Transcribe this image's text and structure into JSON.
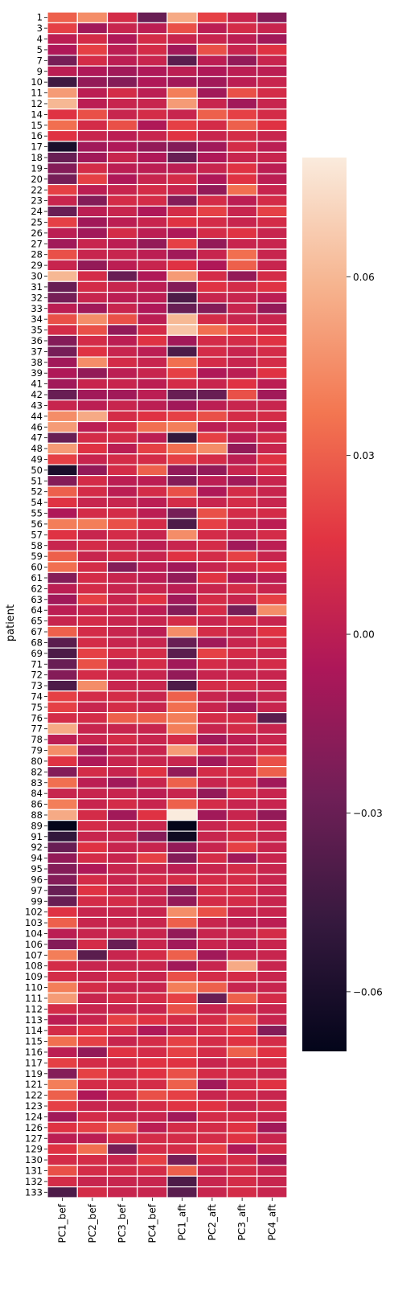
{
  "chart_data": {
    "type": "heatmap",
    "title": "",
    "xlabel": "",
    "ylabel": "patient",
    "columns": [
      "PC1_bef",
      "PC2_bef",
      "PC3_bef",
      "PC4_bef",
      "PC1_aft",
      "PC2_aft",
      "PC3_aft",
      "PC4_aft"
    ],
    "rows": [
      "1",
      "3",
      "4",
      "5",
      "7",
      "9",
      "10",
      "11",
      "12",
      "14",
      "15",
      "16",
      "17",
      "18",
      "19",
      "20",
      "22",
      "23",
      "24",
      "25",
      "26",
      "27",
      "28",
      "29",
      "30",
      "31",
      "32",
      "33",
      "34",
      "35",
      "36",
      "37",
      "38",
      "39",
      "41",
      "42",
      "43",
      "44",
      "46",
      "47",
      "48",
      "49",
      "50",
      "51",
      "52",
      "54",
      "55",
      "56",
      "57",
      "58",
      "59",
      "60",
      "61",
      "62",
      "63",
      "64",
      "65",
      "67",
      "68",
      "69",
      "71",
      "72",
      "73",
      "74",
      "75",
      "76",
      "77",
      "78",
      "79",
      "80",
      "82",
      "83",
      "84",
      "86",
      "88",
      "89",
      "91",
      "92",
      "94",
      "95",
      "96",
      "97",
      "99",
      "102",
      "103",
      "104",
      "106",
      "107",
      "108",
      "109",
      "110",
      "111",
      "112",
      "113",
      "114",
      "115",
      "116",
      "117",
      "119",
      "121",
      "122",
      "123",
      "124",
      "126",
      "127",
      "129",
      "130",
      "131",
      "132",
      "133"
    ],
    "values": [
      [
        0.03,
        0.045,
        0.01,
        -0.03,
        0.055,
        0.02,
        0.005,
        -0.02
      ],
      [
        0.02,
        -0.01,
        0.005,
        0.0,
        0.025,
        0.0,
        0.01,
        0.005
      ],
      [
        0.0,
        0.01,
        -0.005,
        0.01,
        0.005,
        0.005,
        0.0,
        -0.01
      ],
      [
        -0.005,
        0.02,
        0.0,
        0.01,
        -0.01,
        0.025,
        0.005,
        0.015
      ],
      [
        -0.025,
        0.01,
        0.0,
        0.005,
        -0.035,
        0.0,
        -0.015,
        0.005
      ],
      [
        0.0,
        -0.005,
        -0.01,
        -0.005,
        0.0,
        -0.005,
        0.0,
        0.0
      ],
      [
        -0.045,
        -0.015,
        -0.02,
        -0.005,
        -0.01,
        -0.01,
        0.0,
        0.005
      ],
      [
        0.05,
        0.0,
        0.01,
        0.0,
        0.04,
        -0.01,
        0.025,
        0.01
      ],
      [
        0.06,
        0.0,
        0.005,
        0.005,
        0.05,
        0.005,
        -0.01,
        0.005
      ],
      [
        0.015,
        0.025,
        0.005,
        0.01,
        0.005,
        0.03,
        0.02,
        0.01
      ],
      [
        0.035,
        0.01,
        0.025,
        -0.005,
        0.02,
        0.01,
        0.03,
        0.015
      ],
      [
        0.015,
        0.005,
        0.0,
        0.005,
        0.015,
        0.005,
        0.01,
        0.005
      ],
      [
        -0.06,
        -0.01,
        -0.005,
        -0.015,
        -0.02,
        -0.01,
        0.01,
        0.0
      ],
      [
        -0.03,
        -0.01,
        0.005,
        -0.005,
        -0.03,
        -0.005,
        0.005,
        0.005
      ],
      [
        -0.02,
        0.01,
        0.0,
        0.0,
        0.0,
        0.005,
        0.015,
        0.0
      ],
      [
        -0.025,
        0.02,
        -0.005,
        0.005,
        0.01,
        -0.005,
        0.015,
        0.0
      ],
      [
        0.02,
        0.0,
        0.005,
        0.01,
        0.005,
        -0.015,
        0.035,
        0.005
      ],
      [
        0.005,
        -0.02,
        0.01,
        0.01,
        -0.02,
        0.01,
        0.0,
        0.01
      ],
      [
        -0.03,
        0.0,
        0.005,
        -0.005,
        0.01,
        0.02,
        0.005,
        0.02
      ],
      [
        0.02,
        -0.01,
        0.0,
        0.005,
        0.015,
        0.01,
        0.005,
        0.01
      ],
      [
        0.0,
        -0.01,
        0.01,
        0.0,
        -0.005,
        0.01,
        0.015,
        0.005
      ],
      [
        -0.01,
        0.005,
        0.0,
        -0.015,
        0.02,
        -0.015,
        0.005,
        0.005
      ],
      [
        0.025,
        0.005,
        0.005,
        0.0,
        -0.01,
        0.005,
        0.035,
        0.005
      ],
      [
        0.005,
        -0.015,
        0.0,
        0.005,
        0.015,
        -0.005,
        0.03,
        0.005
      ],
      [
        0.06,
        0.01,
        -0.03,
        -0.005,
        0.05,
        0.01,
        -0.015,
        0.01
      ],
      [
        -0.03,
        0.01,
        0.005,
        0.0,
        -0.02,
        0.015,
        0.01,
        0.015
      ],
      [
        -0.025,
        0.005,
        0.0,
        0.0,
        -0.04,
        0.005,
        0.005,
        0.0
      ],
      [
        0.0,
        -0.01,
        0.005,
        -0.005,
        -0.03,
        -0.02,
        0.005,
        -0.015
      ],
      [
        0.025,
        0.045,
        0.025,
        0.0,
        0.06,
        0.01,
        0.005,
        0.005
      ],
      [
        0.01,
        0.025,
        -0.015,
        0.01,
        0.065,
        0.035,
        0.02,
        0.01
      ],
      [
        -0.02,
        0.01,
        0.0,
        0.015,
        -0.01,
        0.01,
        0.01,
        0.015
      ],
      [
        -0.025,
        0.015,
        0.005,
        0.0,
        -0.04,
        0.01,
        0.005,
        0.01
      ],
      [
        -0.01,
        0.045,
        0.01,
        0.005,
        0.035,
        0.01,
        0.005,
        0.01
      ],
      [
        -0.005,
        -0.015,
        0.0,
        0.005,
        0.02,
        -0.005,
        0.0,
        0.015
      ],
      [
        -0.01,
        0.005,
        0.005,
        0.0,
        0.01,
        0.005,
        0.015,
        0.0
      ],
      [
        -0.03,
        -0.01,
        -0.01,
        0.0,
        -0.03,
        -0.03,
        0.025,
        -0.01
      ],
      [
        0.005,
        0.0,
        0.005,
        0.0,
        -0.01,
        0.0,
        0.005,
        0.005
      ],
      [
        0.045,
        0.055,
        0.01,
        0.015,
        0.02,
        0.025,
        0.01,
        0.01
      ],
      [
        0.05,
        0.0,
        0.01,
        0.035,
        0.04,
        0.0,
        0.005,
        0.0
      ],
      [
        -0.03,
        0.01,
        0.01,
        0.0,
        -0.05,
        0.02,
        0.0,
        0.01
      ],
      [
        0.05,
        0.015,
        0.0,
        0.02,
        0.035,
        0.045,
        -0.015,
        0.005
      ],
      [
        0.02,
        0.005,
        0.01,
        0.01,
        0.02,
        0.01,
        0.0,
        0.015
      ],
      [
        -0.06,
        -0.015,
        0.01,
        0.03,
        -0.015,
        -0.015,
        0.005,
        0.01
      ],
      [
        -0.02,
        0.01,
        0.0,
        0.0,
        -0.02,
        0.0,
        -0.01,
        0.005
      ],
      [
        0.03,
        0.01,
        0.0,
        0.01,
        0.025,
        -0.005,
        0.01,
        0.005
      ],
      [
        0.015,
        0.005,
        0.005,
        0.0,
        0.01,
        0.005,
        0.01,
        0.005
      ],
      [
        -0.005,
        0.01,
        0.01,
        0.0,
        -0.025,
        0.025,
        0.01,
        0.01
      ],
      [
        0.04,
        0.04,
        0.025,
        0.01,
        -0.04,
        0.02,
        0.005,
        0.0
      ],
      [
        0.015,
        0.005,
        0.01,
        0.005,
        0.045,
        0.01,
        0.005,
        0.01
      ],
      [
        0.005,
        0.01,
        0.005,
        0.0,
        0.005,
        0.01,
        -0.01,
        0.0
      ],
      [
        0.03,
        0.005,
        0.01,
        0.005,
        0.015,
        0.01,
        0.02,
        0.005
      ],
      [
        0.035,
        0.01,
        -0.02,
        0.0,
        -0.01,
        0.005,
        0.01,
        0.015
      ],
      [
        -0.02,
        0.01,
        0.005,
        0.0,
        -0.015,
        0.015,
        -0.005,
        0.0
      ],
      [
        0.0,
        0.01,
        0.005,
        0.005,
        0.0,
        0.005,
        0.01,
        0.005
      ],
      [
        -0.01,
        0.02,
        0.005,
        0.015,
        -0.01,
        0.01,
        0.005,
        0.02
      ],
      [
        0.0,
        0.005,
        0.005,
        0.0,
        -0.02,
        0.01,
        -0.025,
        0.045
      ],
      [
        0.005,
        0.01,
        0.005,
        0.005,
        0.01,
        0.005,
        0.01,
        0.005
      ],
      [
        0.03,
        0.01,
        0.005,
        0.0,
        0.045,
        0.01,
        0.005,
        0.015
      ],
      [
        -0.035,
        0.01,
        0.005,
        0.005,
        -0.03,
        -0.01,
        0.005,
        0.01
      ],
      [
        -0.04,
        0.02,
        0.01,
        0.01,
        -0.035,
        0.02,
        0.01,
        0.005
      ],
      [
        -0.03,
        0.025,
        0.0,
        0.01,
        -0.01,
        0.01,
        0.005,
        0.01
      ],
      [
        -0.02,
        0.01,
        0.005,
        0.005,
        -0.015,
        0.005,
        0.005,
        0.005
      ],
      [
        -0.04,
        0.045,
        0.005,
        0.005,
        -0.04,
        0.01,
        0.01,
        0.005
      ],
      [
        0.02,
        0.01,
        0.01,
        0.005,
        0.03,
        0.005,
        0.0,
        0.005
      ],
      [
        0.02,
        0.005,
        0.01,
        0.005,
        0.035,
        0.005,
        -0.01,
        0.005
      ],
      [
        0.01,
        0.01,
        0.03,
        0.03,
        0.04,
        0.01,
        0.01,
        -0.035
      ],
      [
        0.055,
        0.005,
        0.005,
        0.005,
        0.04,
        0.005,
        0.01,
        0.005
      ],
      [
        0.0,
        0.005,
        0.01,
        0.005,
        0.01,
        -0.01,
        0.0,
        0.005
      ],
      [
        0.045,
        -0.01,
        0.005,
        0.005,
        0.05,
        0.01,
        0.005,
        0.01
      ],
      [
        0.015,
        -0.005,
        0.005,
        0.005,
        0.005,
        -0.01,
        0.005,
        0.025
      ],
      [
        -0.02,
        0.01,
        0.005,
        0.015,
        -0.015,
        0.01,
        0.01,
        0.03
      ],
      [
        0.035,
        0.0,
        -0.01,
        0.005,
        0.03,
        0.005,
        0.01,
        -0.01
      ],
      [
        0.005,
        0.005,
        0.005,
        0.0,
        0.005,
        -0.015,
        0.01,
        0.005
      ],
      [
        0.04,
        0.005,
        0.01,
        0.005,
        0.03,
        0.01,
        0.005,
        0.005
      ],
      [
        0.055,
        0.01,
        -0.01,
        0.015,
        0.08,
        -0.01,
        0.005,
        -0.015
      ],
      [
        -0.07,
        0.01,
        0.005,
        0.005,
        -0.07,
        0.005,
        0.01,
        0.005
      ],
      [
        -0.05,
        0.005,
        0.005,
        -0.02,
        -0.065,
        0.005,
        0.01,
        0.005
      ],
      [
        -0.03,
        0.015,
        0.005,
        0.005,
        -0.015,
        0.005,
        0.02,
        0.005
      ],
      [
        -0.015,
        0.01,
        0.005,
        0.02,
        -0.02,
        0.01,
        -0.01,
        0.005
      ],
      [
        -0.02,
        -0.005,
        0.005,
        0.005,
        0.0,
        0.005,
        0.01,
        0.005
      ],
      [
        -0.02,
        0.01,
        0.005,
        0.01,
        0.01,
        0.01,
        0.01,
        0.005
      ],
      [
        -0.03,
        0.015,
        0.005,
        0.005,
        -0.02,
        0.01,
        0.01,
        0.005
      ],
      [
        -0.03,
        0.01,
        0.01,
        0.005,
        -0.015,
        0.01,
        0.01,
        0.005
      ],
      [
        0.015,
        0.005,
        0.005,
        0.005,
        0.045,
        0.025,
        0.005,
        0.005
      ],
      [
        0.03,
        0.005,
        0.005,
        0.005,
        0.03,
        0.005,
        0.0,
        0.0
      ],
      [
        0.0,
        0.005,
        0.005,
        0.005,
        -0.015,
        0.005,
        0.005,
        0.01
      ],
      [
        -0.02,
        0.01,
        -0.03,
        0.005,
        -0.01,
        0.005,
        0.0,
        0.005
      ],
      [
        0.04,
        -0.035,
        0.005,
        0.01,
        0.03,
        -0.01,
        0.005,
        0.005
      ],
      [
        0.01,
        0.005,
        0.005,
        0.005,
        -0.01,
        0.005,
        0.055,
        0.005
      ],
      [
        0.01,
        0.005,
        0.01,
        0.005,
        0.025,
        0.01,
        0.01,
        0.005
      ],
      [
        0.04,
        0.01,
        0.005,
        0.005,
        0.04,
        0.03,
        0.005,
        0.005
      ],
      [
        0.05,
        0.005,
        0.01,
        0.01,
        0.02,
        -0.03,
        0.03,
        0.01
      ],
      [
        0.01,
        0.005,
        0.005,
        0.005,
        0.025,
        0.005,
        0.01,
        0.005
      ],
      [
        0.0,
        0.005,
        0.02,
        0.015,
        0.01,
        0.01,
        0.025,
        0.005
      ],
      [
        0.01,
        0.015,
        0.01,
        -0.005,
        0.005,
        0.01,
        0.015,
        -0.02
      ],
      [
        0.035,
        0.02,
        0.005,
        0.01,
        0.02,
        0.01,
        0.015,
        0.01
      ],
      [
        0.0,
        -0.015,
        0.015,
        0.01,
        0.02,
        0.01,
        0.03,
        0.015
      ],
      [
        0.02,
        0.01,
        0.01,
        0.015,
        0.015,
        0.005,
        0.01,
        0.01
      ],
      [
        -0.02,
        0.02,
        0.01,
        0.015,
        0.025,
        0.01,
        0.01,
        0.005
      ],
      [
        0.04,
        0.01,
        0.01,
        0.01,
        0.03,
        -0.01,
        0.01,
        0.015
      ],
      [
        0.03,
        -0.005,
        0.01,
        0.025,
        0.02,
        0.005,
        0.01,
        0.005
      ],
      [
        0.02,
        0.005,
        0.005,
        0.01,
        0.015,
        0.015,
        0.005,
        0.01
      ],
      [
        -0.01,
        0.01,
        0.005,
        0.005,
        -0.01,
        0.01,
        0.01,
        0.005
      ],
      [
        0.015,
        0.02,
        0.03,
        0.0,
        0.01,
        0.01,
        0.015,
        -0.01
      ],
      [
        0.0,
        0.0,
        0.01,
        0.01,
        0.01,
        0.01,
        0.015,
        0.005
      ],
      [
        0.015,
        0.035,
        -0.025,
        0.01,
        0.01,
        0.02,
        -0.005,
        0.01
      ],
      [
        0.01,
        0.01,
        0.005,
        0.02,
        -0.025,
        0.01,
        0.01,
        -0.01
      ],
      [
        0.025,
        0.01,
        0.01,
        0.01,
        0.03,
        0.005,
        0.01,
        0.005
      ],
      [
        0.01,
        0.005,
        0.005,
        0.005,
        -0.04,
        0.005,
        0.01,
        0.005
      ],
      [
        -0.04,
        0.01,
        0.005,
        0.005,
        -0.035,
        0.005,
        0.01,
        0.005
      ]
    ],
    "colorbar": {
      "ticks": [
        0.06,
        0.03,
        0.0,
        -0.03,
        -0.06
      ],
      "tick_labels": [
        "0.06",
        "0.03",
        "0.00",
        "−0.03",
        "−0.06"
      ],
      "vmin": -0.07,
      "vmax": 0.08
    },
    "colormap": [
      "#03051a",
      "#35193e",
      "#701f57",
      "#ad1759",
      "#e13342",
      "#f37651",
      "#f6b48f",
      "#faebdd"
    ],
    "grid": false,
    "legend": "colorbar-right"
  }
}
